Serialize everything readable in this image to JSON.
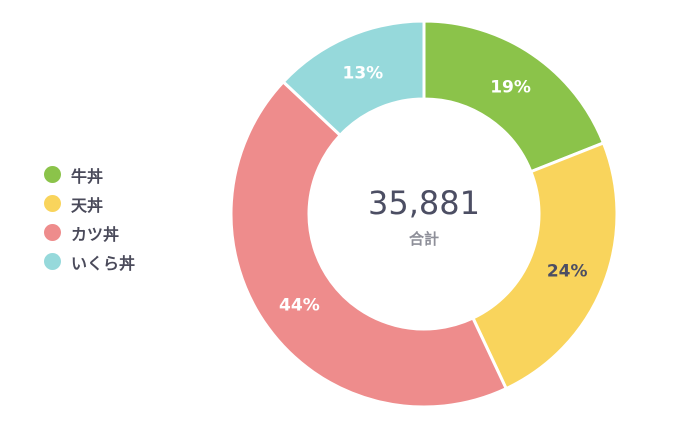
{
  "chart_data": {
    "type": "pie",
    "title": "",
    "total": "35,881",
    "total_label": "合計",
    "legend_position": "left",
    "slices": [
      {
        "name": "牛丼",
        "value": 19,
        "label": "19%",
        "color": "#8bc34a",
        "label_color": "#ffffff"
      },
      {
        "name": "天丼",
        "value": 24,
        "label": "24%",
        "color": "#f9d45c",
        "label_color": "#4c4e63"
      },
      {
        "name": "カツ丼",
        "value": 44,
        "label": "44%",
        "color": "#ee8c8c",
        "label_color": "#ffffff"
      },
      {
        "name": "いくら丼",
        "value": 13,
        "label": "13%",
        "color": "#96d9db",
        "label_color": "#ffffff"
      }
    ]
  }
}
